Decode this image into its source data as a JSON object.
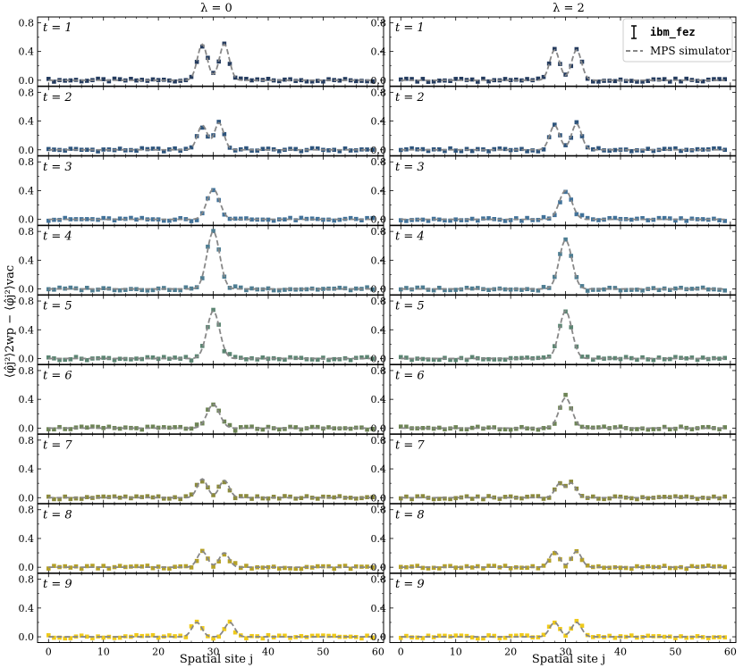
{
  "chart_data": {
    "type": "scatter",
    "column_titles": [
      "λ = 0",
      "λ = 2"
    ],
    "ylabel": "⟨φ̂j²⟩2wp − ⟨φ̂j²⟩vac",
    "xlabel": "Spatial site j",
    "xlim": [
      -2,
      61
    ],
    "ylim": [
      -0.08,
      0.88
    ],
    "xticks": [
      "0",
      "10",
      "20",
      "30",
      "40",
      "50",
      "60"
    ],
    "yticks": [
      "0.0",
      "0.4",
      "0.8"
    ],
    "legend": {
      "position": "top-right",
      "hardware": "ibm_fez",
      "simulator": "MPS simulator"
    },
    "time_labels": [
      "t = 1",
      "t = 2",
      "t = 3",
      "t = 4",
      "t = 5",
      "t = 6",
      "t = 7",
      "t = 8",
      "t = 9"
    ],
    "marker_colors": [
      "#243b5e",
      "#2d547c",
      "#41729a",
      "#4d7d92",
      "#5b8572",
      "#6d8455",
      "#8b8a3c",
      "#b5a128",
      "#efca1a"
    ],
    "simulator_color": "#888888",
    "x_sites": [
      0,
      1,
      2,
      3,
      4,
      5,
      6,
      7,
      8,
      9,
      10,
      11,
      12,
      13,
      14,
      15,
      16,
      17,
      18,
      19,
      20,
      21,
      22,
      23,
      24,
      25,
      26,
      27,
      28,
      29,
      30,
      31,
      32,
      33,
      34,
      35,
      36,
      37,
      38,
      39,
      40,
      41,
      42,
      43,
      44,
      45,
      46,
      47,
      48,
      49,
      50,
      51,
      52,
      53,
      54,
      55,
      56,
      57,
      58,
      59
    ],
    "peak_shape": {
      "t1": {
        "lam0": {
          "peaks": [
            [
              28,
              0.5
            ],
            [
              32,
              0.5
            ]
          ],
          "dip": [
            30,
            0.13
          ]
        },
        "lam2": {
          "peaks": [
            [
              28,
              0.42
            ],
            [
              32,
              0.42
            ]
          ],
          "dip": [
            30,
            0.1
          ]
        }
      },
      "t2": {
        "lam0": {
          "peaks": [
            [
              28,
              0.34
            ],
            [
              31,
              0.38
            ]
          ],
          "dip": [
            30,
            0.2
          ]
        },
        "lam2": {
          "peaks": [
            [
              28,
              0.34
            ],
            [
              32,
              0.36
            ]
          ],
          "dip": [
            30,
            0.16
          ]
        }
      },
      "t3": {
        "lam0": {
          "peaks": [
            [
              30,
              0.42
            ]
          ]
        },
        "lam2": {
          "peaks": [
            [
              30,
              0.4
            ]
          ]
        }
      },
      "t4": {
        "lam0": {
          "peaks": [
            [
              30,
              0.8
            ]
          ]
        },
        "lam2": {
          "peaks": [
            [
              30,
              0.68
            ]
          ]
        }
      },
      "t5": {
        "lam0": {
          "peaks": [
            [
              30,
              0.66
            ]
          ]
        },
        "lam2": {
          "peaks": [
            [
              30,
              0.66
            ]
          ]
        }
      },
      "t6": {
        "lam0": {
          "peaks": [
            [
              30,
              0.33
            ]
          ]
        },
        "lam2": {
          "peaks": [
            [
              30,
              0.42
            ]
          ]
        }
      },
      "t7": {
        "lam0": {
          "peaks": [
            [
              28,
              0.26
            ],
            [
              32,
              0.24
            ]
          ],
          "dip": [
            30,
            0.15
          ]
        },
        "lam2": {
          "peaks": [
            [
              29,
              0.2
            ],
            [
              31,
              0.2
            ]
          ],
          "dip": [
            30,
            0.15
          ]
        }
      },
      "t8": {
        "lam0": {
          "peaks": [
            [
              28,
              0.22
            ],
            [
              32,
              0.2
            ]
          ],
          "dip": [
            30,
            0.12
          ]
        },
        "lam2": {
          "peaks": [
            [
              28,
              0.22
            ],
            [
              32,
              0.22
            ]
          ],
          "dip": [
            30,
            0.08
          ]
        }
      },
      "t9": {
        "lam0": {
          "peaks": [
            [
              27,
              0.2
            ],
            [
              33,
              0.2
            ]
          ],
          "dip": [
            30,
            0.05
          ]
        },
        "lam2": {
          "peaks": [
            [
              28,
              0.2
            ],
            [
              32,
              0.2
            ]
          ],
          "dip": [
            30,
            0.05
          ]
        }
      }
    }
  }
}
